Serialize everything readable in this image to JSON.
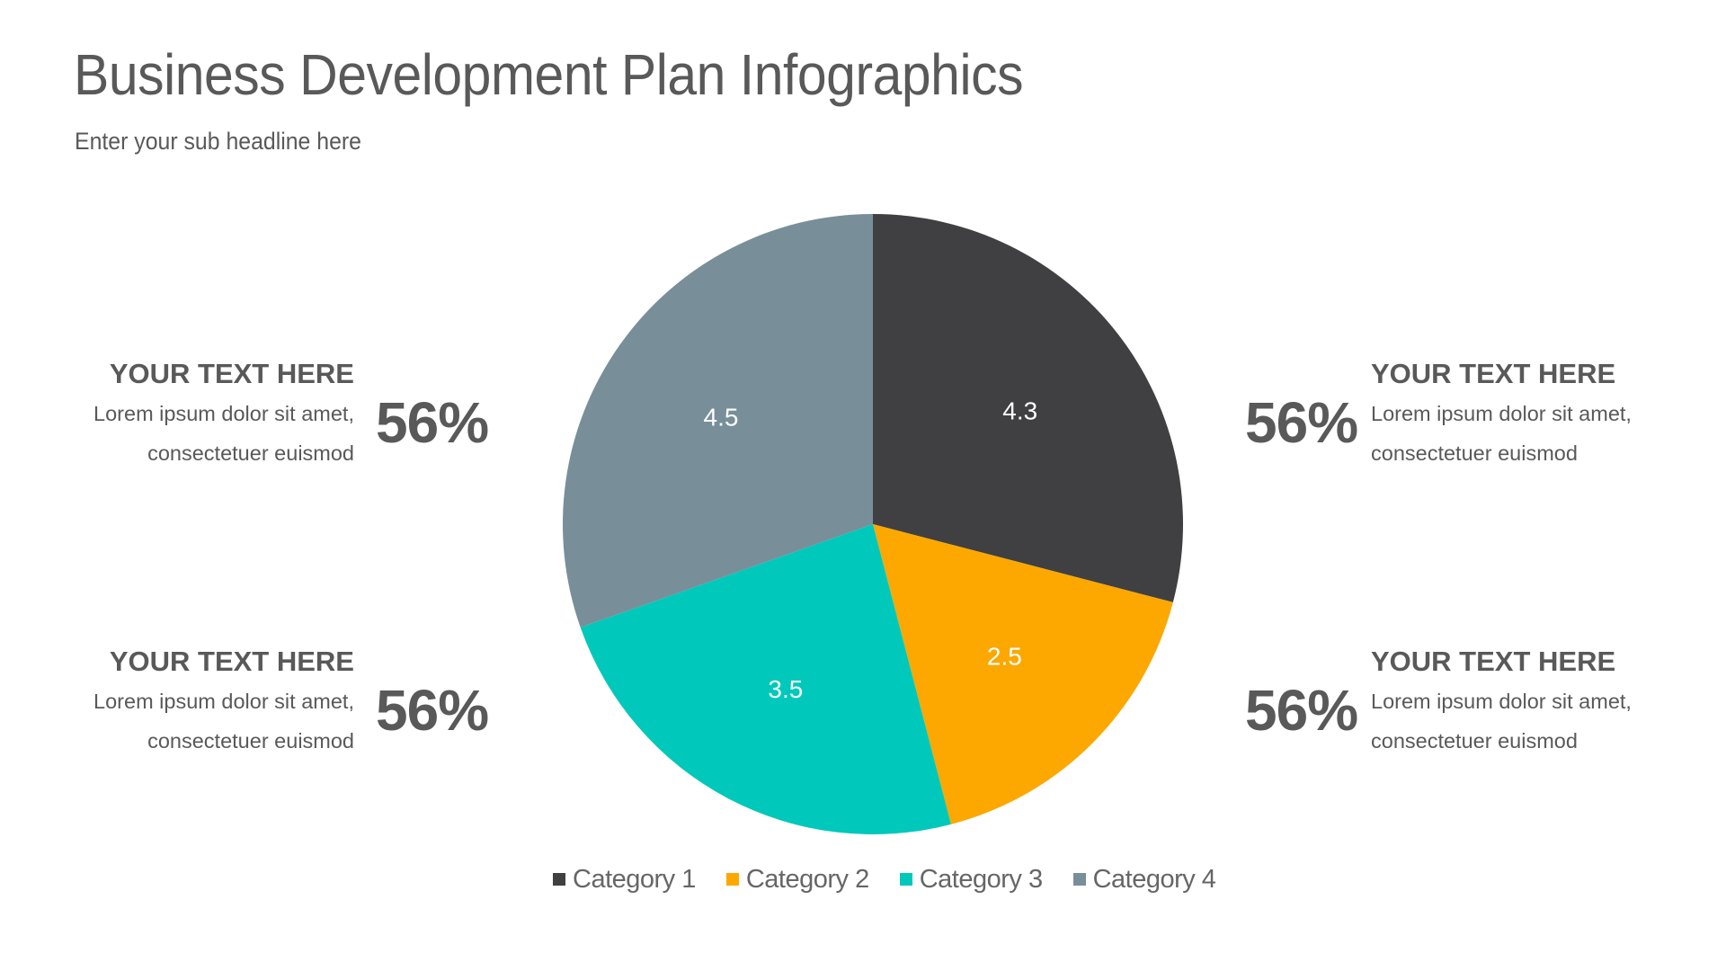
{
  "header": {
    "title": "Business Development Plan Infographics",
    "subtitle": "Enter your sub headline here"
  },
  "blocks": [
    {
      "position": "top-left",
      "heading": "YOUR TEXT HERE",
      "line1": "Lorem ipsum dolor sit amet,",
      "line2": "consectetuer euismod",
      "percent": "56%"
    },
    {
      "position": "top-right",
      "heading": "YOUR TEXT HERE",
      "line1": "Lorem ipsum dolor sit amet,",
      "line2": "consectetuer euismod",
      "percent": "56%"
    },
    {
      "position": "bottom-left",
      "heading": "YOUR TEXT HERE",
      "line1": "Lorem ipsum dolor sit amet,",
      "line2": "consectetuer euismod",
      "percent": "56%"
    },
    {
      "position": "bottom-right",
      "heading": "YOUR TEXT HERE",
      "line1": "Lorem ipsum dolor sit amet,",
      "line2": "consectetuer euismod",
      "percent": "56%"
    }
  ],
  "colors": {
    "text": "#595959",
    "category_1": "#404042",
    "category_2": "#FCA800",
    "category_3": "#00C8BA",
    "category_4": "#788F99"
  },
  "chart_data": {
    "type": "pie",
    "title": "",
    "categories": [
      "Category 1",
      "Category 2",
      "Category 3",
      "Category 4"
    ],
    "values": [
      4.3,
      2.5,
      3.5,
      4.5
    ],
    "data_labels": [
      "4.3",
      "2.5",
      "3.5",
      "4.5"
    ],
    "colors": [
      "#404042",
      "#FCA800",
      "#00C8BA",
      "#788F99"
    ],
    "start_angle_deg": 0,
    "direction": "clockwise",
    "legend": {
      "position": "bottom",
      "entries": [
        "Category 1",
        "Category 2",
        "Category 3",
        "Category 4"
      ]
    }
  }
}
